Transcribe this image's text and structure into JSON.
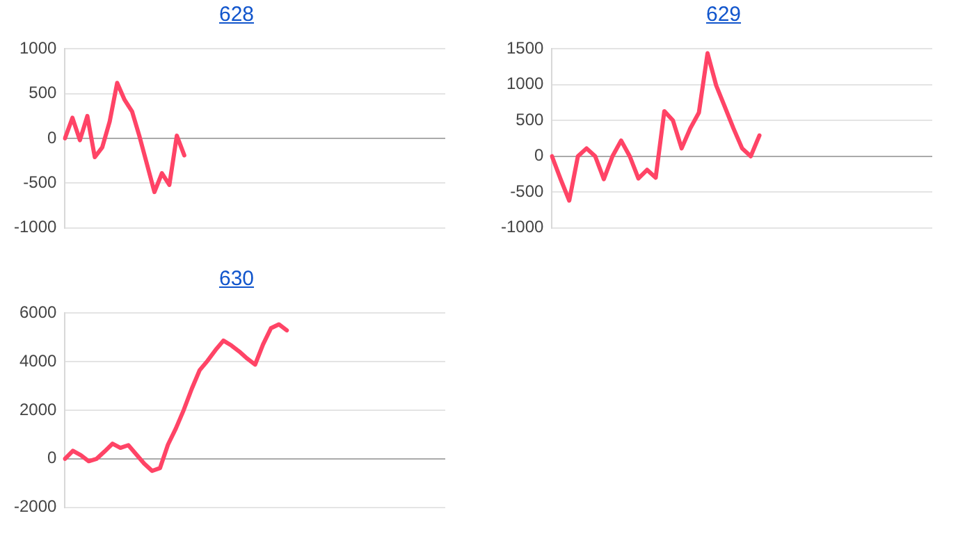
{
  "chart_data": [
    {
      "type": "line",
      "title": "628",
      "categories": [
        null,
        null,
        null,
        null,
        null,
        null,
        null,
        null,
        null,
        null,
        null,
        null,
        null,
        null,
        null,
        null,
        null,
        null,
        null,
        null,
        null,
        null,
        null,
        null,
        null,
        null,
        null,
        null,
        null,
        null,
        null,
        null,
        null,
        null,
        null,
        null,
        null,
        null,
        null,
        null,
        null,
        null,
        null,
        null,
        null,
        null,
        null,
        null,
        null,
        null,
        null,
        null
      ],
      "series": [
        {
          "color": "#ff4466",
          "values": [
            0,
            230,
            -20,
            250,
            -210,
            -100,
            190,
            620,
            430,
            300,
            20,
            -290,
            -600,
            -390,
            -520,
            30,
            -190,
            null,
            null,
            null,
            null,
            null,
            null,
            null,
            null,
            null,
            null,
            null,
            null,
            null,
            null,
            null,
            null,
            null,
            null,
            null,
            null,
            null,
            null,
            null,
            null,
            null,
            null,
            null,
            null,
            null,
            null,
            null,
            null,
            null,
            null,
            null
          ]
        }
      ],
      "ylim": [
        -1000,
        1000
      ],
      "yticks": [
        -1000,
        -500,
        0,
        500,
        1000
      ],
      "grid": "y",
      "tick_labels": "y",
      "marker": "none",
      "line_style": "solid"
    },
    {
      "type": "line",
      "title": "629",
      "categories": [
        null,
        null,
        null,
        null,
        null,
        null,
        null,
        null,
        null,
        null,
        null,
        null,
        null,
        null,
        null,
        null,
        null,
        null,
        null,
        null,
        null,
        null,
        null,
        null,
        null,
        null,
        null,
        null,
        null,
        null,
        null,
        null,
        null,
        null,
        null,
        null,
        null,
        null,
        null,
        null,
        null,
        null,
        null,
        null,
        null
      ],
      "series": [
        {
          "color": "#ff4466",
          "values": [
            0,
            -320,
            -620,
            0,
            110,
            0,
            -320,
            0,
            220,
            0,
            -310,
            -190,
            -300,
            630,
            500,
            110,
            390,
            610,
            1440,
            990,
            690,
            390,
            110,
            0,
            290,
            null,
            null,
            null,
            null,
            null,
            null,
            null,
            null,
            null,
            null,
            null,
            null,
            null,
            null,
            null,
            null,
            null,
            null,
            null,
            null
          ]
        }
      ],
      "ylim": [
        -1000,
        1500
      ],
      "yticks": [
        -1000,
        -500,
        0,
        500,
        1000,
        1500
      ],
      "grid": "y",
      "tick_labels": "y",
      "marker": "none",
      "line_style": "solid"
    },
    {
      "type": "line",
      "title": "630",
      "categories": [
        null,
        null,
        null,
        null,
        null,
        null,
        null,
        null,
        null,
        null,
        null,
        null,
        null,
        null,
        null,
        null,
        null,
        null,
        null,
        null,
        null,
        null,
        null,
        null,
        null,
        null,
        null,
        null,
        null,
        null,
        null,
        null,
        null,
        null,
        null,
        null,
        null,
        null,
        null,
        null,
        null,
        null,
        null,
        null,
        null,
        null,
        null,
        null,
        null
      ],
      "series": [
        {
          "color": "#ff4466",
          "values": [
            0,
            330,
            150,
            -100,
            0,
            300,
            620,
            450,
            560,
            180,
            -200,
            -500,
            -380,
            580,
            1250,
            2020,
            2880,
            3650,
            4040,
            4480,
            4870,
            4670,
            4420,
            4130,
            3880,
            4710,
            5380,
            5540,
            5290,
            null,
            null,
            null,
            null,
            null,
            null,
            null,
            null,
            null,
            null,
            null,
            null,
            null,
            null,
            null,
            null,
            null,
            null,
            null,
            null
          ]
        }
      ],
      "ylim": [
        -2000,
        6000
      ],
      "yticks": [
        -2000,
        0,
        2000,
        4000,
        6000
      ],
      "grid": "y",
      "tick_labels": "y",
      "marker": "none",
      "line_style": "solid"
    }
  ]
}
